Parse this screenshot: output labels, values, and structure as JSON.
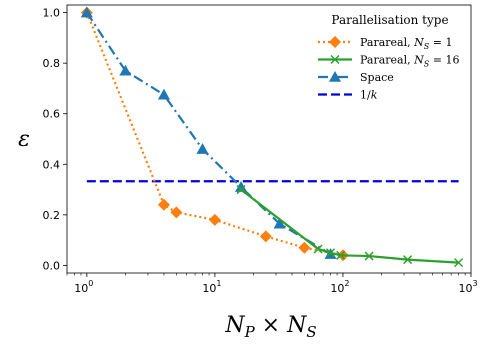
{
  "chart_data": {
    "type": "line",
    "xscale": "log",
    "xlim": [
      0.7,
      1000
    ],
    "ylim": [
      -0.03,
      1.03
    ],
    "xlabel": "N_P × N_S",
    "ylabel": "ε",
    "yticks": [
      0.0,
      0.2,
      0.4,
      0.6,
      0.8,
      1.0
    ],
    "ytick_labels": [
      "0.0",
      "0.2",
      "0.4",
      "0.6",
      "0.8",
      "1.0"
    ],
    "xticks": [
      1,
      10,
      100,
      1000
    ],
    "xtick_labels": [
      {
        "base": "10",
        "exp": "0"
      },
      {
        "base": "10",
        "exp": "1"
      },
      {
        "base": "10",
        "exp": "2"
      },
      {
        "base": "10",
        "exp": "3"
      }
    ],
    "legend": {
      "title": "Parallelisation type",
      "position": "top-right"
    },
    "series": [
      {
        "name": "Parareal, N_S = 1",
        "label_parts": [
          "Parareal, ",
          "N",
          "S",
          " = 1"
        ],
        "color": "#ff7f0e",
        "marker": "diamond",
        "dash": "dotted",
        "x": [
          1,
          4,
          5,
          10,
          25,
          50,
          100
        ],
        "y": [
          1.0,
          0.24,
          0.21,
          0.18,
          0.115,
          0.07,
          0.04
        ]
      },
      {
        "name": "Parareal, N_S = 16",
        "label_parts": [
          "Parareal, ",
          "N",
          "S",
          " = 16"
        ],
        "color": "#2ca02c",
        "marker": "x",
        "dash": "solid",
        "x": [
          16,
          64,
          80,
          96,
          160,
          320,
          800
        ],
        "y": [
          0.3,
          0.065,
          0.05,
          0.04,
          0.037,
          0.023,
          0.011
        ]
      },
      {
        "name": "Space",
        "label_parts": [
          "Space"
        ],
        "color": "#1f77b4",
        "marker": "triangle",
        "dash": "dashdot",
        "x": [
          1,
          2,
          4,
          8,
          16,
          32,
          80
        ],
        "y": [
          1.0,
          0.77,
          0.675,
          0.46,
          0.31,
          0.165,
          0.045
        ]
      },
      {
        "name": "1/k",
        "label_parts": [
          "1/",
          "k"
        ],
        "color": "#0000dd",
        "marker": "none",
        "dash": "dashed",
        "x": [
          1,
          800
        ],
        "y": [
          0.333,
          0.333
        ]
      }
    ]
  }
}
